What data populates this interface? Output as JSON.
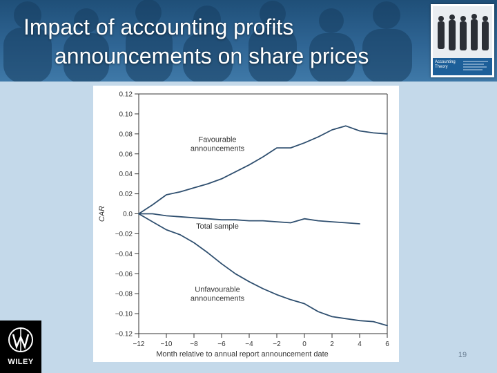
{
  "slide": {
    "title_line1": "Impact of accounting profits",
    "title_line2": "announcements on share prices",
    "page_number": "19",
    "logo_text": "WILEY"
  },
  "book": {
    "title_line1": "Accounting",
    "title_line2": "Theory"
  },
  "colors": {
    "header": "#2f6594",
    "background": "#c4d9ea",
    "line": "#2f4f6f"
  },
  "chart_data": {
    "type": "line",
    "xlabel": "Month relative to annual report announcement date",
    "ylabel": "CAR",
    "xlim": [
      -12,
      6
    ],
    "ylim": [
      -0.12,
      0.12
    ],
    "x_ticks": [
      -12,
      -10,
      -8,
      -6,
      -4,
      -2,
      0,
      2,
      4,
      6
    ],
    "x_tick_labels": [
      "−12",
      "−10",
      "−8",
      "−6",
      "−4",
      "−2",
      "0",
      "2",
      "4",
      "6"
    ],
    "y_ticks": [
      0.12,
      0.1,
      0.08,
      0.06,
      0.04,
      0.02,
      0.0,
      -0.02,
      -0.04,
      -0.06,
      -0.08,
      -0.1,
      -0.12
    ],
    "y_tick_labels": [
      "0.12",
      "0.10",
      "0.08",
      "0.06",
      "0.04",
      "0.02",
      "0.0",
      "−0.02",
      "−0.04",
      "−0.06",
      "−0.08",
      "−0.10",
      "−0.12"
    ],
    "series": [
      {
        "name": "Favourable announcements",
        "x": [
          -12,
          -11,
          -10,
          -9,
          -8,
          -7,
          -6,
          -5,
          -4,
          -3,
          -2,
          -1,
          0,
          1,
          2,
          3,
          4,
          5,
          6
        ],
        "y": [
          0.0,
          0.009,
          0.019,
          0.022,
          0.026,
          0.03,
          0.035,
          0.042,
          0.049,
          0.057,
          0.066,
          0.066,
          0.071,
          0.077,
          0.084,
          0.088,
          0.083,
          0.081,
          0.08
        ]
      },
      {
        "name": "Total sample",
        "x": [
          -12,
          -11,
          -10,
          -9,
          -8,
          -7,
          -6,
          -5,
          -4,
          -3,
          -2,
          -1,
          0,
          1,
          2,
          3,
          4
        ],
        "y": [
          0.0,
          0.0,
          -0.002,
          -0.003,
          -0.004,
          -0.005,
          -0.006,
          -0.006,
          -0.007,
          -0.007,
          -0.008,
          -0.009,
          -0.005,
          -0.007,
          -0.008,
          -0.009,
          -0.01
        ]
      },
      {
        "name": "Unfavourable announcements",
        "x": [
          -12,
          -11,
          -10,
          -9,
          -8,
          -7,
          -6,
          -5,
          -4,
          -3,
          -2,
          -1,
          0,
          1,
          2,
          3,
          4,
          5,
          6
        ],
        "y": [
          0.0,
          -0.008,
          -0.016,
          -0.021,
          -0.029,
          -0.039,
          -0.05,
          -0.06,
          -0.068,
          -0.075,
          -0.081,
          -0.086,
          -0.09,
          -0.098,
          -0.103,
          -0.105,
          -0.107,
          -0.108,
          -0.112
        ]
      }
    ],
    "annotations": [
      {
        "text": "Favourable\nannouncements",
        "x": -6.3,
        "y": 0.072
      },
      {
        "text": "Total sample",
        "x": -6.3,
        "y": -0.015
      },
      {
        "text": "Unfavourable\nannouncements",
        "x": -6.3,
        "y": -0.078
      }
    ]
  }
}
